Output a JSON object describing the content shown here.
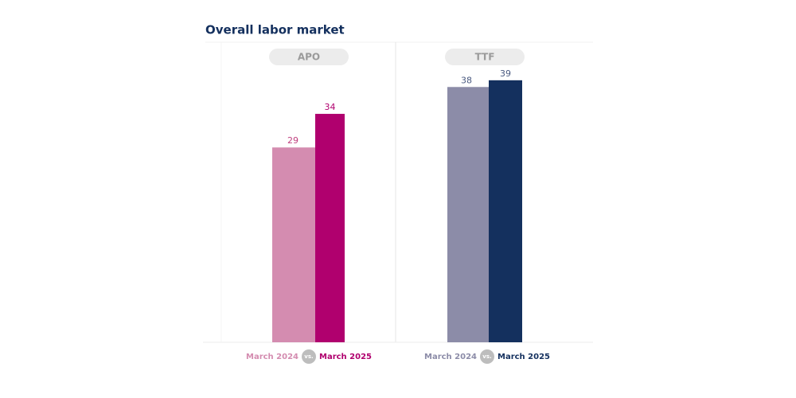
{
  "title": "Overall labor market",
  "chart_data": [
    {
      "type": "bar",
      "title": "APO",
      "categories": [
        "March 2024",
        "March 2025"
      ],
      "values": [
        29,
        34
      ],
      "colors": [
        "#d48cb0",
        "#b0006e"
      ],
      "ylim": [
        0,
        50
      ],
      "separator": "vs."
    },
    {
      "type": "bar",
      "title": "TTF",
      "categories": [
        "March 2024",
        "March 2025"
      ],
      "values": [
        38,
        39
      ],
      "colors": [
        "#8c8ca8",
        "#14305e"
      ],
      "ylim": [
        0,
        50
      ],
      "separator": "vs."
    }
  ]
}
